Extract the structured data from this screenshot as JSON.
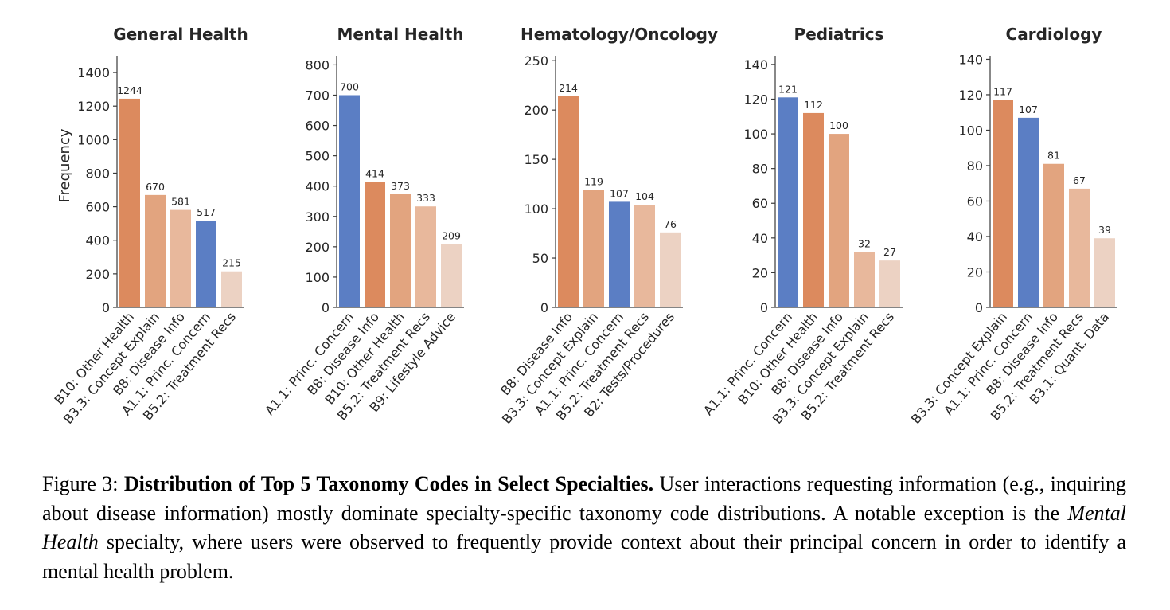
{
  "chart_data": [
    {
      "type": "bar",
      "title": "General Health",
      "ylabel": "Frequency",
      "ylim": [
        0,
        1500
      ],
      "yticks": [
        0,
        200,
        400,
        600,
        800,
        1000,
        1200,
        1400
      ],
      "categories": [
        "B10: Other Health",
        "B3.3: Concept Explain",
        "B8: Disease Info",
        "A1.1: Princ. Concern",
        "B5.2: Treatment Recs"
      ],
      "values": [
        1244,
        670,
        581,
        517,
        215
      ],
      "colors": [
        "#dc8a5e",
        "#e2a47f",
        "#e8b89c",
        "#5b7ec4",
        "#ecd2c3"
      ]
    },
    {
      "type": "bar",
      "title": "Mental Health",
      "ylabel": "",
      "ylim": [
        0,
        830
      ],
      "yticks": [
        0,
        100,
        200,
        300,
        400,
        500,
        600,
        700,
        800
      ],
      "categories": [
        "A1.1: Princ. Concern",
        "B8: Disease Info",
        "B10: Other Health",
        "B5.2: Treatment Recs",
        "B9: Lifestyle Advice"
      ],
      "values": [
        700,
        414,
        373,
        333,
        209
      ],
      "colors": [
        "#5b7ec4",
        "#dc8a5e",
        "#e2a47f",
        "#e8b89c",
        "#ecd2c3"
      ]
    },
    {
      "type": "bar",
      "title": "Hematology/Oncology",
      "ylabel": "",
      "ylim": [
        0,
        255
      ],
      "yticks": [
        0,
        50,
        100,
        150,
        200,
        250
      ],
      "categories": [
        "B8: Disease Info",
        "B3.3: Concept Explain",
        "A1.1: Princ. Concern",
        "B5.2: Treatment Recs",
        "B2: Tests/Procedures"
      ],
      "values": [
        214,
        119,
        107,
        104,
        76
      ],
      "colors": [
        "#dc8a5e",
        "#e2a47f",
        "#5b7ec4",
        "#e8b89c",
        "#ecd2c3"
      ]
    },
    {
      "type": "bar",
      "title": "Pediatrics",
      "ylabel": "",
      "ylim": [
        0,
        145
      ],
      "yticks": [
        0,
        20,
        40,
        60,
        80,
        100,
        120,
        140
      ],
      "categories": [
        "A1.1: Princ. Concern",
        "B10: Other Health",
        "B8: Disease Info",
        "B3.3: Concept Explain",
        "B5.2: Treatment Recs"
      ],
      "values": [
        121,
        112,
        100,
        32,
        27
      ],
      "colors": [
        "#5b7ec4",
        "#dc8a5e",
        "#e2a47f",
        "#e8b89c",
        "#ecd2c3"
      ]
    },
    {
      "type": "bar",
      "title": "Cardiology",
      "ylabel": "",
      "ylim": [
        0,
        142
      ],
      "yticks": [
        0,
        20,
        40,
        60,
        80,
        100,
        120,
        140
      ],
      "categories": [
        "B3.3: Concept Explain",
        "A1.1: Princ. Concern",
        "B8: Disease Info",
        "B5.2: Treatment Recs",
        "B3.1: Quant. Data"
      ],
      "values": [
        117,
        107,
        81,
        67,
        39
      ],
      "colors": [
        "#dc8a5e",
        "#5b7ec4",
        "#e2a47f",
        "#e8b89c",
        "#ecd2c3"
      ]
    }
  ],
  "caption": {
    "prefix": "Figure 3: ",
    "bold": "Distribution of Top 5 Taxonomy Codes in Select Specialties.",
    "part1": " User interactions requesting information (e.g., inquiring about disease information) mostly dominate specialty-specific taxonomy code distributions.  A notable exception is the ",
    "italic": "Mental Health",
    "part2": " specialty, where users were observed to frequently provide context about their principal concern in order to identify a mental health problem."
  }
}
